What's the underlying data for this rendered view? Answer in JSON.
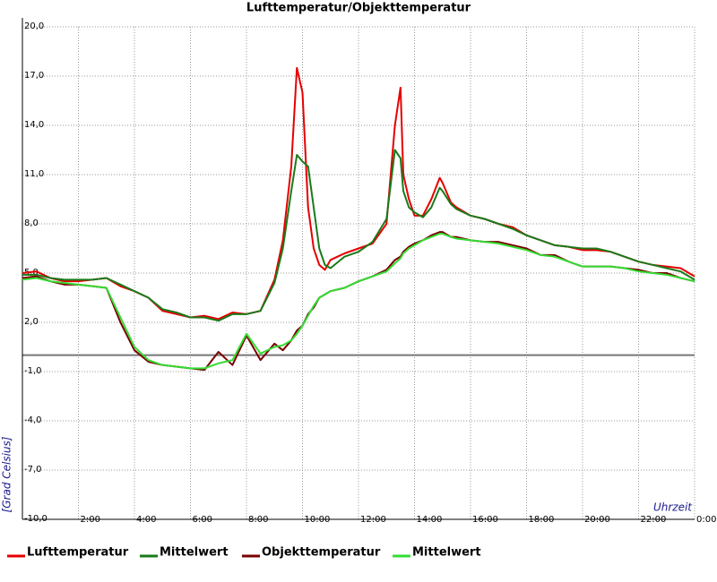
{
  "chart_data": {
    "type": "line",
    "title": "Lufttemperatur/Objekttemperatur",
    "y_label": "[Grad Celsius]",
    "x_label": "Uhrzeit",
    "x": [
      0,
      0.5,
      1,
      1.5,
      2,
      2.5,
      3,
      3.5,
      4,
      4.5,
      5,
      5.5,
      6,
      6.5,
      7,
      7.5,
      8,
      8.5,
      9,
      9.3,
      9.6,
      9.8,
      10,
      10.2,
      10.4,
      10.6,
      10.8,
      11,
      11.5,
      12,
      12.5,
      13,
      13.3,
      13.5,
      13.6,
      13.8,
      14,
      14.3,
      14.6,
      14.9,
      15,
      15.3,
      15.5,
      16,
      16.5,
      17,
      17.5,
      18,
      18.5,
      19,
      19.5,
      20,
      20.5,
      21,
      21.5,
      22,
      22.5,
      23,
      23.5,
      24
    ],
    "series": [
      {
        "name": "Lufttemperatur",
        "color": "#e60000",
        "values": [
          5.0,
          5.1,
          4.7,
          4.5,
          4.5,
          4.6,
          4.7,
          4.2,
          3.9,
          3.5,
          2.7,
          2.5,
          2.3,
          2.4,
          2.2,
          2.6,
          2.5,
          2.7,
          4.6,
          7.0,
          11.5,
          17.5,
          16.0,
          9.0,
          6.5,
          5.5,
          5.2,
          5.8,
          6.2,
          6.5,
          6.8,
          8.0,
          14.0,
          16.3,
          11.0,
          9.5,
          8.5,
          8.5,
          9.5,
          10.8,
          10.5,
          9.3,
          9.0,
          8.5,
          8.3,
          8.0,
          7.8,
          7.3,
          7.0,
          6.7,
          6.6,
          6.4,
          6.4,
          6.3,
          6.0,
          5.7,
          5.5,
          5.4,
          5.3,
          4.8
        ]
      },
      {
        "name": "Mittelwert",
        "color": "#1a7a1a",
        "values": [
          4.9,
          4.9,
          4.7,
          4.6,
          4.6,
          4.6,
          4.7,
          4.3,
          3.9,
          3.5,
          2.8,
          2.6,
          2.3,
          2.3,
          2.1,
          2.5,
          2.5,
          2.7,
          4.4,
          6.5,
          10.0,
          12.2,
          11.8,
          11.5,
          9.0,
          6.5,
          5.5,
          5.3,
          6.0,
          6.3,
          6.9,
          8.3,
          12.5,
          12.0,
          10.0,
          9.0,
          8.7,
          8.4,
          9.0,
          10.2,
          10.0,
          9.2,
          8.9,
          8.5,
          8.3,
          8.0,
          7.7,
          7.3,
          7.0,
          6.7,
          6.6,
          6.5,
          6.5,
          6.3,
          6.0,
          5.7,
          5.5,
          5.3,
          5.1,
          4.6
        ]
      },
      {
        "name": "Objekttemperatur",
        "color": "#7a0000",
        "values": [
          4.7,
          4.8,
          4.5,
          4.3,
          4.3,
          4.2,
          4.1,
          2.0,
          0.3,
          -0.4,
          -0.6,
          -0.7,
          -0.8,
          -0.9,
          0.2,
          -0.6,
          1.2,
          -0.3,
          0.7,
          0.3,
          0.9,
          1.5,
          1.8,
          2.5,
          2.9,
          3.5,
          3.7,
          3.9,
          4.1,
          4.5,
          4.8,
          5.2,
          5.8,
          6.0,
          6.3,
          6.6,
          6.8,
          7.0,
          7.3,
          7.5,
          7.5,
          7.2,
          7.2,
          7.0,
          6.9,
          6.9,
          6.7,
          6.5,
          6.1,
          6.1,
          5.7,
          5.4,
          5.4,
          5.4,
          5.3,
          5.2,
          5.0,
          5.0,
          4.7,
          4.5
        ]
      },
      {
        "name": "Mittelwert",
        "color": "#33dd33",
        "values": [
          4.6,
          4.7,
          4.5,
          4.4,
          4.3,
          4.2,
          4.1,
          2.3,
          0.5,
          -0.3,
          -0.6,
          -0.7,
          -0.8,
          -0.8,
          -0.5,
          -0.3,
          1.3,
          0.1,
          0.5,
          0.6,
          0.9,
          1.3,
          1.8,
          2.4,
          3.0,
          3.5,
          3.7,
          3.9,
          4.1,
          4.5,
          4.8,
          5.1,
          5.6,
          5.9,
          6.2,
          6.5,
          6.7,
          7.0,
          7.2,
          7.4,
          7.4,
          7.2,
          7.1,
          7.0,
          6.9,
          6.8,
          6.6,
          6.4,
          6.1,
          6.0,
          5.7,
          5.4,
          5.4,
          5.4,
          5.3,
          5.1,
          5.0,
          4.9,
          4.7,
          4.5
        ]
      }
    ],
    "xlim": [
      0,
      24
    ],
    "xticks": [
      {
        "value": 2,
        "label": "2:00"
      },
      {
        "value": 4,
        "label": "4:00"
      },
      {
        "value": 6,
        "label": "6:00"
      },
      {
        "value": 8,
        "label": "8:00"
      },
      {
        "value": 10,
        "label": "10:00"
      },
      {
        "value": 12,
        "label": "12:00"
      },
      {
        "value": 14,
        "label": "14:00"
      },
      {
        "value": 16,
        "label": "16:00"
      },
      {
        "value": 18,
        "label": "18:00"
      },
      {
        "value": 20,
        "label": "20:00"
      },
      {
        "value": 22,
        "label": "22:00"
      },
      {
        "value": 24,
        "label": "0:00"
      }
    ],
    "ylim": [
      -10,
      20
    ],
    "yticks": [
      {
        "value": -10,
        "label": "-10,0"
      },
      {
        "value": -7,
        "label": "-7,0"
      },
      {
        "value": -4,
        "label": "-4,0"
      },
      {
        "value": -1,
        "label": "-1,0"
      },
      {
        "value": 2,
        "label": "2,0"
      },
      {
        "value": 5,
        "label": "5,0"
      },
      {
        "value": 8,
        "label": "8,0"
      },
      {
        "value": 11,
        "label": "11,0"
      },
      {
        "value": 14,
        "label": "14,0"
      },
      {
        "value": 17,
        "label": "17,0"
      },
      {
        "value": 20,
        "label": "20,0"
      }
    ],
    "grid": true,
    "legend": "bottom"
  }
}
